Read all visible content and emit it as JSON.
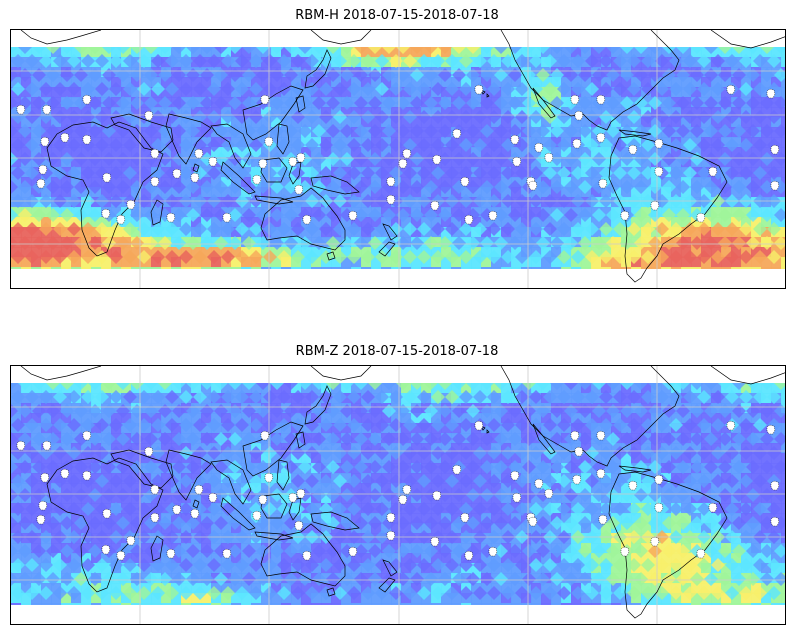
{
  "panels": [
    {
      "title": "RBM-H 2018-07-15-2018-07-18",
      "variant": "H"
    },
    {
      "title": "RBM-Z 2018-07-15-2018-07-18",
      "variant": "Z"
    }
  ],
  "colormap": [
    "#6a6cff",
    "#5f9cff",
    "#5be6ff",
    "#9ff59a",
    "#f7f06a",
    "#f6a85a",
    "#e8635c"
  ],
  "colors": {
    "coastline": "#000000",
    "gridline": "#cccccc",
    "station_marker": "#ffffff"
  }
}
